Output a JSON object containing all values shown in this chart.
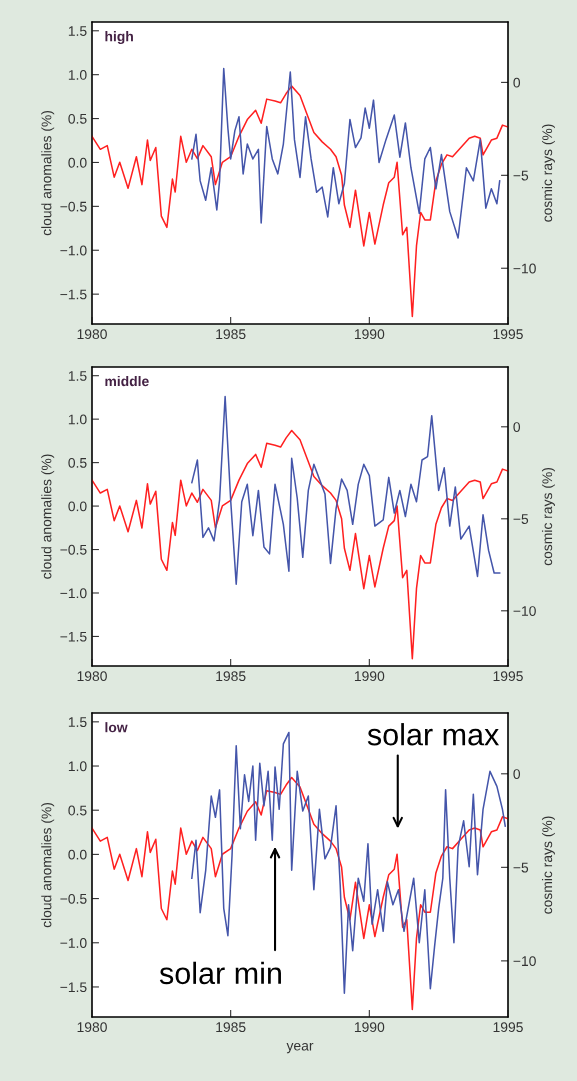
{
  "chart_data": [
    {
      "type": "line",
      "title": "high",
      "ylabel": "cloud anomalies (%)",
      "y2label": "cosmic rays (%)",
      "xlim": [
        1980,
        1995
      ],
      "xticks": [
        1980,
        1985,
        1990,
        1995
      ],
      "ylim": [
        -1.84,
        1.6
      ],
      "yticks": [
        -1.5,
        {
          "value": -1,
          "label": "−1.0"
        },
        -0.5,
        {
          "value": 0,
          "label": "0.0"
        },
        0.5,
        {
          "value": 1,
          "label": "1.0"
        },
        1.5
      ],
      "y2lim": [
        -13,
        3.25
      ],
      "y2ticks": [
        -10,
        -5,
        0
      ],
      "grid": false,
      "legend": false,
      "series": [
        {
          "color": "#4455aa",
          "x": [
            1983.6,
            1983.75,
            1983.9,
            1984.1,
            1984.3,
            1984.5,
            1984.6,
            1984.75,
            1984.9,
            1985.0,
            1985.15,
            1985.3,
            1985.45,
            1985.6,
            1985.8,
            1986.0,
            1986.1,
            1986.3,
            1986.5,
            1986.7,
            1986.9,
            1987.15,
            1987.3,
            1987.5,
            1987.7,
            1987.9,
            1988.1,
            1988.3,
            1988.5,
            1988.7,
            1988.9,
            1989.1,
            1989.3,
            1989.5,
            1989.7,
            1989.85,
            1990.0,
            1990.15,
            1990.35,
            1990.6,
            1990.9,
            1991.1,
            1991.3,
            1991.5,
            1991.8,
            1992.0,
            1992.2,
            1992.4,
            1992.6,
            1992.9,
            1993.2,
            1993.5,
            1993.75,
            1994.0,
            1994.2,
            1994.4,
            1994.6,
            1994.7
          ],
          "values": [
            0.04,
            0.32,
            -0.21,
            -0.43,
            -0.06,
            -0.54,
            -0.21,
            1.07,
            0.39,
            0.04,
            0.36,
            0.52,
            -0.13,
            0.21,
            0.04,
            0.15,
            -0.69,
            0.41,
            0.04,
            -0.13,
            0.21,
            1.03,
            0.26,
            -0.17,
            0.52,
            0.04,
            -0.34,
            -0.28,
            -0.62,
            -0.06,
            -0.47,
            -0.24,
            0.49,
            0.17,
            0.28,
            0.62,
            0.39,
            0.71,
            0.0,
            0.26,
            0.54,
            0.06,
            0.45,
            -0.06,
            -0.58,
            0.04,
            0.17,
            -0.3,
            0.09,
            -0.56,
            -0.86,
            -0.06,
            -0.21,
            0.26,
            -0.52,
            -0.3,
            -0.47,
            -0.21
          ]
        },
        {
          "color": "#ff2020",
          "axis": "y2",
          "x": [
            1980.0,
            1980.3,
            1980.55,
            1980.8,
            1981.0,
            1981.3,
            1981.6,
            1981.8,
            1982.0,
            1982.1,
            1982.3,
            1982.5,
            1982.7,
            1982.9,
            1983.0,
            1983.2,
            1983.4,
            1983.6,
            1983.8,
            1984.0,
            1984.3,
            1984.45,
            1984.7,
            1985.0,
            1985.3,
            1985.6,
            1985.9,
            1986.1,
            1986.3,
            1986.6,
            1986.8,
            1987.0,
            1987.2,
            1987.5,
            1987.8,
            1988.0,
            1988.3,
            1988.6,
            1988.8,
            1989.0,
            1989.1,
            1989.3,
            1989.5,
            1989.8,
            1990.0,
            1990.2,
            1990.5,
            1990.7,
            1990.9,
            1991.0,
            1991.2,
            1991.35,
            1991.55,
            1991.7,
            1991.85,
            1992.0,
            1992.2,
            1992.4,
            1992.6,
            1992.8,
            1993.0,
            1993.3,
            1993.6,
            1993.8,
            1994.0,
            1994.1,
            1994.4,
            1994.6,
            1994.8,
            1995.0
          ],
          "values": [
            -2.9,
            -3.6,
            -3.4,
            -5.1,
            -4.3,
            -5.7,
            -4.0,
            -5.5,
            -3.1,
            -4.2,
            -3.5,
            -7.2,
            -7.8,
            -5.2,
            -5.9,
            -2.9,
            -4.3,
            -3.6,
            -4.1,
            -3.4,
            -4.0,
            -5.5,
            -4.3,
            -4.0,
            -2.9,
            -2.0,
            -1.5,
            -2.2,
            -0.9,
            -1.0,
            -1.1,
            -0.6,
            -0.2,
            -0.7,
            -1.9,
            -2.7,
            -3.2,
            -3.6,
            -4.0,
            -5.0,
            -6.6,
            -7.8,
            -5.8,
            -8.8,
            -7.0,
            -8.7,
            -6.6,
            -5.4,
            -5.1,
            -4.3,
            -8.2,
            -7.8,
            -12.6,
            -8.8,
            -7.0,
            -7.4,
            -7.4,
            -5.3,
            -4.4,
            -3.9,
            -4.0,
            -3.5,
            -3.0,
            -2.9,
            -3.0,
            -3.9,
            -3.1,
            -3.0,
            -2.3,
            -2.4
          ]
        }
      ]
    },
    {
      "type": "line",
      "title": "middle",
      "ylabel": "cloud anomalies (%)",
      "y2label": "cosmic rays (%)",
      "xlim": [
        1980,
        1995
      ],
      "xticks": [
        1980,
        1985,
        1990,
        1995
      ],
      "ylim": [
        -1.84,
        1.6
      ],
      "yticks": [
        -1.5,
        {
          "value": -1,
          "label": "−1.0"
        },
        -0.5,
        {
          "value": 0,
          "label": "0.0"
        },
        0.5,
        {
          "value": 1,
          "label": "1.0"
        },
        1.5
      ],
      "y2lim": [
        -13,
        3.25
      ],
      "y2ticks": [
        -10,
        -5,
        0
      ],
      "grid": false,
      "legend": false,
      "series": [
        {
          "color": "#4455aa",
          "x": [
            1983.6,
            1983.8,
            1984.0,
            1984.2,
            1984.4,
            1984.6,
            1984.8,
            1985.0,
            1985.2,
            1985.4,
            1985.6,
            1985.8,
            1986.0,
            1986.2,
            1986.4,
            1986.6,
            1986.9,
            1987.1,
            1987.2,
            1987.4,
            1987.6,
            1987.8,
            1988.0,
            1988.2,
            1988.4,
            1988.6,
            1988.8,
            1989.0,
            1989.2,
            1989.4,
            1989.6,
            1989.8,
            1990.0,
            1990.2,
            1990.5,
            1990.7,
            1990.9,
            1991.1,
            1991.3,
            1991.5,
            1991.7,
            1991.9,
            1992.1,
            1992.25,
            1992.5,
            1992.7,
            1992.9,
            1993.1,
            1993.3,
            1993.6,
            1993.9,
            1994.1,
            1994.3,
            1994.5,
            1994.7
          ],
          "values": [
            0.27,
            0.53,
            -0.36,
            -0.25,
            -0.4,
            0.07,
            1.26,
            0.07,
            -0.9,
            0.05,
            0.25,
            -0.34,
            0.18,
            -0.47,
            -0.55,
            0.25,
            -0.21,
            -0.75,
            0.55,
            0.09,
            -0.59,
            0.18,
            0.48,
            0.31,
            0.14,
            -0.66,
            -0.03,
            0.31,
            0.18,
            -0.21,
            0.25,
            0.48,
            0.35,
            -0.23,
            -0.16,
            0.33,
            -0.08,
            0.18,
            -0.12,
            0.25,
            0.05,
            0.53,
            0.57,
            1.04,
            0.18,
            0.44,
            -0.23,
            0.22,
            -0.38,
            -0.23,
            -0.81,
            -0.1,
            -0.51,
            -0.77,
            -0.77
          ]
        },
        {
          "color": "#ff2020",
          "axis": "y2",
          "x": [
            1980.0,
            1980.3,
            1980.55,
            1980.8,
            1981.0,
            1981.3,
            1981.6,
            1981.8,
            1982.0,
            1982.1,
            1982.3,
            1982.5,
            1982.7,
            1982.9,
            1983.0,
            1983.2,
            1983.4,
            1983.6,
            1983.8,
            1984.0,
            1984.3,
            1984.45,
            1984.7,
            1985.0,
            1985.3,
            1985.6,
            1985.9,
            1986.1,
            1986.3,
            1986.6,
            1986.8,
            1987.0,
            1987.2,
            1987.5,
            1987.8,
            1988.0,
            1988.3,
            1988.6,
            1988.8,
            1989.0,
            1989.1,
            1989.3,
            1989.5,
            1989.8,
            1990.0,
            1990.2,
            1990.5,
            1990.7,
            1990.9,
            1991.0,
            1991.2,
            1991.35,
            1991.55,
            1991.7,
            1991.85,
            1992.0,
            1992.2,
            1992.4,
            1992.6,
            1992.8,
            1993.0,
            1993.3,
            1993.6,
            1993.8,
            1994.0,
            1994.1,
            1994.4,
            1994.6,
            1994.8,
            1995.0
          ],
          "values": [
            -2.9,
            -3.6,
            -3.4,
            -5.1,
            -4.3,
            -5.7,
            -4.0,
            -5.5,
            -3.1,
            -4.2,
            -3.5,
            -7.2,
            -7.8,
            -5.2,
            -5.9,
            -2.9,
            -4.3,
            -3.6,
            -4.1,
            -3.4,
            -4.0,
            -5.5,
            -4.3,
            -4.0,
            -2.9,
            -2.0,
            -1.5,
            -2.2,
            -0.9,
            -1.0,
            -1.1,
            -0.6,
            -0.2,
            -0.7,
            -1.9,
            -2.7,
            -3.2,
            -3.6,
            -4.0,
            -5.0,
            -6.6,
            -7.8,
            -5.8,
            -8.8,
            -7.0,
            -8.7,
            -6.6,
            -5.4,
            -5.1,
            -4.3,
            -8.2,
            -7.8,
            -12.6,
            -8.8,
            -7.0,
            -7.4,
            -7.4,
            -5.3,
            -4.4,
            -3.9,
            -4.0,
            -3.5,
            -3.0,
            -2.9,
            -3.0,
            -3.9,
            -3.1,
            -3.0,
            -2.3,
            -2.4
          ]
        }
      ]
    },
    {
      "type": "line",
      "title": "low",
      "xlabel": "year",
      "ylabel": "cloud anomalies (%)",
      "y2label": "cosmic rays (%)",
      "xlim": [
        1980,
        1995
      ],
      "xticks": [
        1980,
        1985,
        1990,
        1995
      ],
      "ylim": [
        -1.84,
        1.6
      ],
      "yticks": [
        -1.5,
        {
          "value": -1,
          "label": "−1.0"
        },
        -0.5,
        {
          "value": 0,
          "label": "0.0"
        },
        0.5,
        {
          "value": 1,
          "label": "1.0"
        },
        1.5
      ],
      "y2lim": [
        -13,
        3.25
      ],
      "y2ticks": [
        -10,
        -5,
        0
      ],
      "grid": false,
      "legend": false,
      "annotations": [
        "solar max",
        "solar min"
      ],
      "series": [
        {
          "color": "#4455aa",
          "x": [
            1983.6,
            1983.75,
            1983.9,
            1984.1,
            1984.3,
            1984.45,
            1984.6,
            1984.75,
            1984.9,
            1985.05,
            1985.2,
            1985.35,
            1985.5,
            1985.65,
            1985.8,
            1985.9,
            1986.05,
            1986.2,
            1986.35,
            1986.5,
            1986.6,
            1986.75,
            1986.9,
            1987.1,
            1987.2,
            1987.4,
            1987.6,
            1987.8,
            1988.0,
            1988.2,
            1988.4,
            1988.6,
            1988.8,
            1988.95,
            1989.1,
            1989.25,
            1989.4,
            1989.6,
            1989.8,
            1989.95,
            1990.1,
            1990.3,
            1990.5,
            1990.65,
            1990.85,
            1991.05,
            1991.25,
            1991.4,
            1991.6,
            1991.8,
            1992.0,
            1992.2,
            1992.35,
            1992.5,
            1992.65,
            1992.75,
            1992.9,
            1993.05,
            1993.2,
            1993.4,
            1993.6,
            1993.75,
            1993.9,
            1994.1,
            1994.35,
            1994.6,
            1994.8,
            1994.9
          ],
          "values": [
            -0.27,
            0.16,
            -0.66,
            -0.18,
            0.66,
            0.42,
            0.73,
            -0.61,
            -0.92,
            -0.01,
            1.23,
            0.29,
            0.9,
            0.6,
            1.0,
            0.16,
            1.03,
            0.55,
            0.94,
            0.16,
            0.99,
            0.51,
            1.25,
            1.38,
            -0.18,
            0.94,
            0.49,
            0.66,
            -0.4,
            0.51,
            -0.05,
            0.08,
            0.55,
            -0.35,
            -1.57,
            -0.57,
            -1.09,
            -0.27,
            -0.53,
            0.12,
            -0.79,
            -0.4,
            -0.87,
            -0.31,
            -0.57,
            -0.4,
            -0.87,
            -0.61,
            -0.27,
            -1.0,
            -0.4,
            -1.52,
            -1.05,
            -0.61,
            -0.27,
            0.73,
            -0.27,
            -1.0,
            0.08,
            0.38,
            -0.14,
            0.68,
            -0.23,
            0.51,
            0.94,
            0.77,
            0.51,
            0.32
          ]
        },
        {
          "color": "#ff2020",
          "axis": "y2",
          "x": [
            1980.0,
            1980.3,
            1980.55,
            1980.8,
            1981.0,
            1981.3,
            1981.6,
            1981.8,
            1982.0,
            1982.1,
            1982.3,
            1982.5,
            1982.7,
            1982.9,
            1983.0,
            1983.2,
            1983.4,
            1983.6,
            1983.8,
            1984.0,
            1984.3,
            1984.45,
            1984.7,
            1985.0,
            1985.3,
            1985.6,
            1985.9,
            1986.1,
            1986.3,
            1986.6,
            1986.8,
            1987.0,
            1987.2,
            1987.5,
            1987.8,
            1988.0,
            1988.3,
            1988.6,
            1988.8,
            1989.0,
            1989.1,
            1989.3,
            1989.5,
            1989.8,
            1990.0,
            1990.2,
            1990.5,
            1990.7,
            1990.9,
            1991.0,
            1991.2,
            1991.35,
            1991.55,
            1991.7,
            1991.85,
            1992.0,
            1992.2,
            1992.4,
            1992.6,
            1992.8,
            1993.0,
            1993.3,
            1993.6,
            1993.8,
            1994.0,
            1994.1,
            1994.4,
            1994.6,
            1994.8,
            1995.0
          ],
          "values": [
            -2.9,
            -3.6,
            -3.4,
            -5.1,
            -4.3,
            -5.7,
            -4.0,
            -5.5,
            -3.1,
            -4.2,
            -3.5,
            -7.2,
            -7.8,
            -5.2,
            -5.9,
            -2.9,
            -4.3,
            -3.6,
            -4.1,
            -3.4,
            -4.0,
            -5.5,
            -4.3,
            -4.0,
            -2.9,
            -2.0,
            -1.5,
            -2.2,
            -0.9,
            -1.0,
            -1.1,
            -0.6,
            -0.2,
            -0.7,
            -1.9,
            -2.7,
            -3.2,
            -3.6,
            -4.0,
            -5.0,
            -6.6,
            -7.8,
            -5.8,
            -8.8,
            -7.0,
            -8.7,
            -6.6,
            -5.4,
            -5.1,
            -4.3,
            -8.2,
            -7.8,
            -12.6,
            -8.8,
            -7.0,
            -7.4,
            -7.4,
            -5.3,
            -4.4,
            -3.9,
            -4.0,
            -3.5,
            -3.0,
            -2.9,
            -3.0,
            -3.9,
            -3.1,
            -3.0,
            -2.3,
            -2.4
          ]
        }
      ]
    }
  ]
}
